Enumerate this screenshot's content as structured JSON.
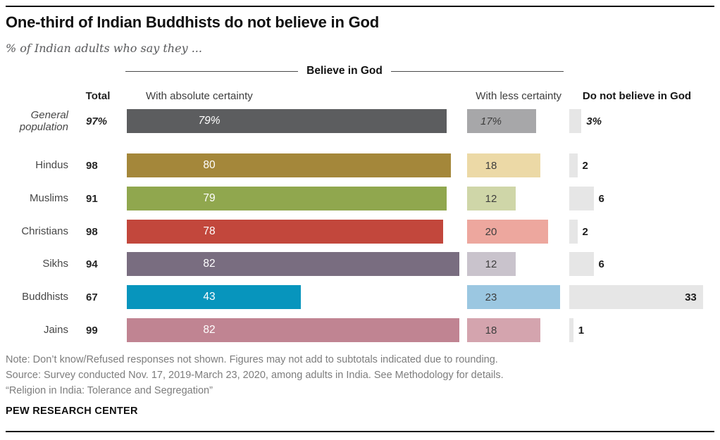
{
  "header": {
    "title": "One-third of Indian Buddhists do not believe in God",
    "subtitle": "% of Indian adults who say they ...",
    "group_label": "Believe in God",
    "col_total": "Total",
    "col_absolute": "With absolute certainty",
    "col_less": "With less certainty",
    "col_dnb": "Do not believe in God"
  },
  "chart_data": {
    "type": "bar",
    "orientation": "horizontal",
    "unit": "%",
    "xlim": [
      0,
      100
    ],
    "section_header": "Believe in God",
    "columns": [
      "Total",
      "With absolute certainty",
      "With less certainty",
      "Do not believe in God"
    ],
    "categories": [
      "General population",
      "Hindus",
      "Muslims",
      "Christians",
      "Sikhs",
      "Buddhists",
      "Jains"
    ],
    "series": [
      {
        "name": "Total",
        "values": [
          97,
          98,
          91,
          98,
          94,
          67,
          99
        ]
      },
      {
        "name": "With absolute certainty",
        "values": [
          79,
          80,
          79,
          78,
          82,
          43,
          82
        ]
      },
      {
        "name": "With less certainty",
        "values": [
          17,
          18,
          12,
          20,
          12,
          23,
          18
        ]
      },
      {
        "name": "Do not believe in God",
        "values": [
          3,
          2,
          6,
          2,
          6,
          33,
          1
        ]
      }
    ],
    "dnb_bar_color": "#e6e6e6",
    "rows": [
      {
        "label": "General population",
        "italic": true,
        "total": 97,
        "total_label": "97%",
        "absolute": 79,
        "absolute_label": "79%",
        "less": 17,
        "less_label": "17%",
        "dnb": 3,
        "dnb_label": "3%",
        "absolute_color": "#5c5d5f",
        "less_color": "#a7a7a9"
      },
      {
        "label": "Hindus",
        "italic": false,
        "total": 98,
        "total_label": "98",
        "absolute": 80,
        "absolute_label": "80",
        "less": 18,
        "less_label": "18",
        "dnb": 2,
        "dnb_label": "2",
        "absolute_color": "#a4873a",
        "less_color": "#ecd9a6"
      },
      {
        "label": "Muslims",
        "italic": false,
        "total": 91,
        "total_label": "91",
        "absolute": 79,
        "absolute_label": "79",
        "less": 12,
        "less_label": "12",
        "dnb": 6,
        "dnb_label": "6",
        "absolute_color": "#90a74e",
        "less_color": "#cfd6a8"
      },
      {
        "label": "Christians",
        "italic": false,
        "total": 98,
        "total_label": "98",
        "absolute": 78,
        "absolute_label": "78",
        "less": 20,
        "less_label": "20",
        "dnb": 2,
        "dnb_label": "2",
        "absolute_color": "#c2473c",
        "less_color": "#eda79e"
      },
      {
        "label": "Sikhs",
        "italic": false,
        "total": 94,
        "total_label": "94",
        "absolute": 82,
        "absolute_label": "82",
        "less": 12,
        "less_label": "12",
        "dnb": 6,
        "dnb_label": "6",
        "absolute_color": "#796d80",
        "less_color": "#c9c3cc"
      },
      {
        "label": "Buddhists",
        "italic": false,
        "total": 67,
        "total_label": "67",
        "absolute": 43,
        "absolute_label": "43",
        "less": 23,
        "less_label": "23",
        "dnb": 33,
        "dnb_label": "33",
        "absolute_color": "#0795bd",
        "less_color": "#9bc7e1"
      },
      {
        "label": "Jains",
        "italic": false,
        "total": 99,
        "total_label": "99",
        "absolute": 82,
        "absolute_label": "82",
        "less": 18,
        "less_label": "18",
        "dnb": 1,
        "dnb_label": "1",
        "absolute_color": "#c08492",
        "less_color": "#d4a4ae"
      }
    ]
  },
  "footer": {
    "note": "Note: Don’t know/Refused responses not shown. Figures may not add to subtotals indicated due to rounding.",
    "source": "Source: Survey conducted Nov. 17, 2019-March 23, 2020, among adults in India. See Methodology for details.",
    "quote": "“Religion in India: Tolerance and Segregation”",
    "brand": "PEW RESEARCH CENTER"
  }
}
